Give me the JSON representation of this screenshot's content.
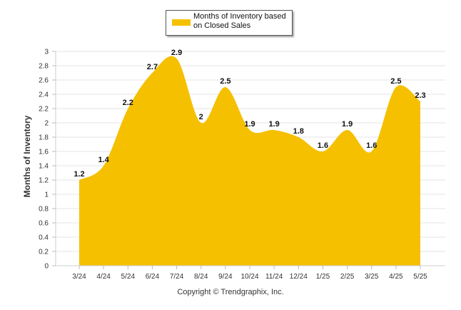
{
  "chart_data": {
    "type": "area",
    "ylabel": "Months of Inventory",
    "categories": [
      "3/24",
      "4/24",
      "5/24",
      "6/24",
      "7/24",
      "8/24",
      "9/24",
      "10/24",
      "11/24",
      "12/24",
      "1/25",
      "2/25",
      "3/25",
      "4/25",
      "5/25"
    ],
    "series": [
      {
        "name": "Months of Inventory based on Closed Sales",
        "values": [
          1.2,
          1.4,
          2.2,
          2.7,
          2.9,
          2,
          2.5,
          1.9,
          1.9,
          1.8,
          1.6,
          1.9,
          1.6,
          2.5,
          2.3
        ]
      }
    ],
    "data_labels": [
      "1.2",
      "1.4",
      "2.2",
      "2.7",
      "2.9",
      "2",
      "2.5",
      "1.9",
      "1.9",
      "1.8",
      "1.6",
      "1.9",
      "1.6",
      "2.5",
      "2.3"
    ],
    "yticks": [
      "0",
      "0.2",
      "0.4",
      "0.6",
      "0.8",
      "1",
      "1.2",
      "1.4",
      "1.6",
      "1.8",
      "2",
      "2.2",
      "2.4",
      "2.6",
      "2.8",
      "3"
    ],
    "ylim": [
      0,
      3
    ],
    "grid": true,
    "legend_position": "top-center",
    "color": "#F5C000"
  },
  "footer": {
    "copyright": "Copyright © Trendgraphix, Inc."
  }
}
